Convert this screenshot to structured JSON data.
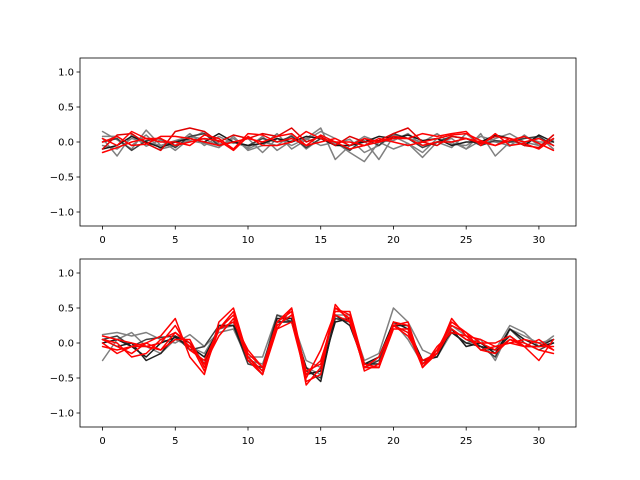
{
  "chart_data": [
    {
      "type": "line",
      "xlim": [
        -1.55,
        32.55
      ],
      "ylim": [
        -1.2,
        1.2
      ],
      "xticks": [
        0,
        5,
        10,
        15,
        20,
        25,
        30
      ],
      "yticks": [
        -1.0,
        -0.5,
        0.0,
        0.5,
        1.0
      ],
      "xtick_labels": [
        "0",
        "5",
        "10",
        "15",
        "20",
        "25",
        "30"
      ],
      "ytick_labels": [
        "−1.0",
        "−0.5",
        "0.0",
        "0.5",
        "1.0"
      ],
      "x": [
        0,
        1,
        2,
        3,
        4,
        5,
        6,
        7,
        8,
        9,
        10,
        11,
        12,
        13,
        14,
        15,
        16,
        17,
        18,
        19,
        20,
        21,
        22,
        23,
        24,
        25,
        26,
        27,
        28,
        29,
        30,
        31
      ],
      "series": [
        {
          "color": "#808080",
          "values": [
            0.15,
            0.03,
            -0.1,
            0.17,
            -0.05,
            0.02,
            0.08,
            0.04,
            -0.05,
            0.05,
            -0.1,
            0.0,
            -0.05,
            0.1,
            -0.1,
            0.05,
            -0.03,
            0.04,
            -0.15,
            -0.05,
            0.1,
            0.05,
            0.0,
            0.12,
            -0.03,
            -0.05,
            0.08,
            0.02,
            -0.06,
            0.1,
            -0.05,
            0.03
          ]
        },
        {
          "color": "#808080",
          "values": [
            0.05,
            -0.2,
            0.1,
            -0.06,
            0.03,
            -0.12,
            0.05,
            0.15,
            -0.03,
            0.0,
            -0.08,
            0.08,
            -0.12,
            0.02,
            0.05,
            0.2,
            -0.25,
            -0.05,
            0.08,
            0.0,
            -0.1,
            -0.02,
            -0.22,
            0.0,
            0.05,
            -0.1,
            0.12,
            -0.2,
            0.0,
            -0.02,
            0.08,
            -0.1
          ]
        },
        {
          "color": "#808080",
          "values": [
            -0.05,
            -0.1,
            0.05,
            0.0,
            -0.05,
            -0.05,
            0.12,
            -0.05,
            0.08,
            -0.02,
            0.05,
            -0.15,
            0.05,
            -0.05,
            0.05,
            -0.05,
            0.0,
            -0.15,
            -0.28,
            0.0,
            0.02,
            0.12,
            -0.05,
            0.0,
            -0.08,
            0.12,
            -0.05,
            0.05,
            0.12,
            0.0,
            -0.05,
            0.05
          ]
        },
        {
          "color": "#808080",
          "values": [
            0.08,
            0.08,
            -0.05,
            0.1,
            -0.1,
            -0.05,
            0.02,
            -0.02,
            -0.08,
            0.08,
            -0.12,
            -0.05,
            0.12,
            -0.1,
            0.03,
            0.15,
            0.05,
            -0.05,
            0.02,
            -0.25,
            0.08,
            -0.02,
            -0.15,
            0.05,
            0.0,
            -0.1,
            0.02,
            0.0,
            -0.05,
            0.08,
            0.0,
            0.0
          ]
        },
        {
          "color": "#404040",
          "values": [
            0.0,
            0.05,
            -0.12,
            0.02,
            0.05,
            -0.08,
            0.08,
            0.12,
            -0.05,
            0.0,
            -0.05,
            0.05,
            0.0,
            0.08,
            -0.08,
            0.05,
            0.0,
            -0.12,
            0.05,
            -0.05,
            0.12,
            0.05,
            -0.08,
            0.0,
            0.08,
            0.05,
            -0.05,
            0.02,
            0.0,
            0.05,
            0.08,
            -0.05
          ]
        },
        {
          "color": "#1a1a1a",
          "values": [
            -0.1,
            -0.05,
            0.08,
            0.0,
            -0.08,
            0.0,
            0.05,
            0.0,
            0.12,
            0.0,
            -0.05,
            -0.02,
            0.05,
            0.0,
            0.08,
            0.05,
            -0.05,
            -0.05,
            0.0,
            0.08,
            0.05,
            0.1,
            0.02,
            0.05,
            -0.05,
            0.0,
            0.0,
            0.1,
            0.05,
            -0.05,
            0.1,
            0.0
          ]
        },
        {
          "color": "#e00000",
          "values": [
            -0.1,
            0.1,
            0.12,
            -0.02,
            -0.12,
            0.15,
            0.2,
            0.15,
            0.0,
            0.1,
            0.05,
            0.12,
            0.08,
            0.2,
            0.0,
            0.08,
            -0.05,
            0.08,
            0.0,
            0.02,
            0.12,
            0.2,
            0.0,
            -0.05,
            0.08,
            0.05,
            -0.02,
            0.08,
            0.05,
            -0.05,
            -0.08,
            0.1
          ]
        },
        {
          "color": "#ff0000",
          "values": [
            0.05,
            -0.05,
            0.15,
            0.05,
            0.0,
            0.0,
            -0.05,
            0.1,
            0.05,
            -0.1,
            0.12,
            0.1,
            0.0,
            0.05,
            -0.05,
            0.1,
            0.0,
            0.0,
            -0.05,
            0.05,
            0.0,
            -0.05,
            0.0,
            0.05,
            0.1,
            0.12,
            0.02,
            -0.05,
            0.02,
            0.08,
            -0.02,
            -0.12
          ]
        },
        {
          "color": "#ff0000",
          "values": [
            -0.15,
            -0.08,
            0.0,
            0.05,
            0.05,
            -0.05,
            0.0,
            0.05,
            0.02,
            -0.12,
            0.08,
            -0.05,
            -0.05,
            0.0,
            0.15,
            0.05,
            0.0,
            -0.1,
            -0.05,
            0.0,
            0.05,
            0.05,
            0.12,
            0.08,
            0.12,
            0.15,
            -0.05,
            0.12,
            -0.05,
            -0.02,
            -0.1,
            0.05
          ]
        },
        {
          "color": "#ff0000",
          "values": [
            0.0,
            0.08,
            -0.05,
            -0.03,
            0.08,
            0.08,
            0.05,
            0.0,
            -0.05,
            0.0,
            0.05,
            0.0,
            0.08,
            0.12,
            -0.05,
            0.0,
            0.05,
            -0.05,
            0.05,
            0.0,
            0.08,
            0.05,
            -0.05,
            0.0,
            0.0,
            0.05,
            0.0,
            -0.05,
            0.05,
            0.0,
            0.05,
            -0.05
          ]
        }
      ]
    },
    {
      "type": "line",
      "xlim": [
        -1.55,
        32.55
      ],
      "ylim": [
        -1.2,
        1.2
      ],
      "xticks": [
        0,
        5,
        10,
        15,
        20,
        25,
        30
      ],
      "yticks": [
        -1.0,
        -0.5,
        0.0,
        0.5,
        1.0
      ],
      "xtick_labels": [
        "0",
        "5",
        "10",
        "15",
        "20",
        "25",
        "30"
      ],
      "ytick_labels": [
        "−1.0",
        "−0.5",
        "0.0",
        "0.5",
        "1.0"
      ],
      "x": [
        0,
        1,
        2,
        3,
        4,
        5,
        6,
        7,
        8,
        9,
        10,
        11,
        12,
        13,
        14,
        15,
        16,
        17,
        18,
        19,
        20,
        21,
        22,
        23,
        24,
        25,
        26,
        27,
        28,
        29,
        30,
        31
      ],
      "series": [
        {
          "color": "#808080",
          "values": [
            0.12,
            0.15,
            0.1,
            0.15,
            0.05,
            0.0,
            0.12,
            -0.05,
            0.15,
            0.2,
            -0.25,
            -0.3,
            0.3,
            0.32,
            -0.35,
            -0.45,
            0.35,
            0.35,
            -0.25,
            -0.15,
            0.5,
            0.3,
            -0.1,
            -0.2,
            0.15,
            0.0,
            0.05,
            -0.25,
            0.2,
            0.1,
            0.0,
            0.05
          ]
        },
        {
          "color": "#808080",
          "values": [
            -0.25,
            0.05,
            0.15,
            -0.05,
            -0.15,
            0.05,
            -0.05,
            -0.15,
            0.2,
            0.25,
            -0.2,
            -0.2,
            0.4,
            0.35,
            -0.25,
            -0.35,
            0.4,
            0.4,
            -0.3,
            -0.25,
            0.3,
            0.05,
            -0.3,
            -0.15,
            0.25,
            0.1,
            -0.05,
            -0.1,
            0.25,
            0.15,
            -0.05,
            0.1
          ]
        },
        {
          "color": "#404040",
          "values": [
            0.05,
            0.1,
            -0.05,
            0.05,
            0.08,
            0.1,
            -0.1,
            -0.05,
            0.25,
            0.25,
            -0.3,
            -0.35,
            0.4,
            0.3,
            -0.4,
            -0.5,
            0.35,
            0.3,
            -0.35,
            -0.25,
            0.25,
            0.15,
            -0.25,
            -0.15,
            0.2,
            0.05,
            -0.05,
            -0.2,
            0.2,
            0.0,
            -0.1,
            0.0
          ]
        },
        {
          "color": "#1a1a1a",
          "values": [
            0.0,
            0.05,
            -0.05,
            -0.2,
            0.0,
            0.08,
            -0.05,
            -0.2,
            0.2,
            0.3,
            -0.2,
            -0.4,
            0.35,
            0.35,
            -0.45,
            -0.4,
            0.3,
            0.35,
            -0.3,
            -0.2,
            0.3,
            0.2,
            -0.25,
            -0.2,
            0.2,
            -0.05,
            0.0,
            -0.15,
            0.2,
            0.05,
            -0.05,
            0.0
          ]
        },
        {
          "color": "#202020",
          "values": [
            0.05,
            -0.05,
            0.0,
            -0.25,
            -0.15,
            0.1,
            0.0,
            -0.3,
            0.25,
            0.25,
            -0.25,
            -0.45,
            0.3,
            0.3,
            -0.35,
            -0.55,
            0.4,
            0.25,
            -0.3,
            -0.3,
            0.25,
            0.25,
            -0.3,
            -0.1,
            0.15,
            0.0,
            -0.05,
            -0.1,
            0.1,
            -0.05,
            -0.05,
            0.05
          ]
        },
        {
          "color": "#ff0000",
          "values": [
            0.0,
            -0.15,
            -0.05,
            0.0,
            0.1,
            0.35,
            -0.2,
            -0.45,
            0.3,
            0.5,
            -0.2,
            -0.45,
            0.2,
            0.5,
            -0.55,
            -0.45,
            0.55,
            0.3,
            -0.35,
            -0.35,
            0.3,
            0.25,
            -0.35,
            -0.15,
            0.35,
            0.1,
            -0.1,
            -0.15,
            0.05,
            0.0,
            -0.1,
            -0.15
          ]
        },
        {
          "color": "#ff0000",
          "values": [
            0.05,
            0.0,
            -0.2,
            -0.15,
            0.05,
            0.15,
            0.0,
            -0.4,
            0.2,
            0.45,
            -0.2,
            -0.4,
            0.3,
            0.45,
            -0.6,
            -0.35,
            0.5,
            0.4,
            -0.4,
            -0.3,
            0.25,
            0.15,
            -0.35,
            -0.1,
            0.3,
            0.15,
            -0.1,
            -0.05,
            0.0,
            -0.05,
            -0.25,
            0.05
          ]
        },
        {
          "color": "#ff0000",
          "values": [
            -0.05,
            -0.1,
            -0.05,
            -0.05,
            -0.1,
            0.05,
            0.05,
            -0.35,
            0.2,
            0.3,
            -0.1,
            -0.35,
            0.2,
            0.3,
            -0.5,
            -0.1,
            0.45,
            0.45,
            -0.3,
            -0.35,
            0.25,
            0.3,
            -0.35,
            -0.05,
            0.15,
            0.1,
            0.05,
            -0.05,
            0.0,
            0.05,
            0.0,
            -0.1
          ]
        },
        {
          "color": "#ff0000",
          "values": [
            0.05,
            -0.05,
            -0.15,
            0.0,
            -0.1,
            0.15,
            -0.05,
            -0.3,
            0.1,
            0.35,
            -0.25,
            -0.45,
            0.25,
            0.4,
            -0.4,
            -0.3,
            0.5,
            0.35,
            -0.35,
            -0.2,
            0.25,
            0.1,
            -0.25,
            -0.15,
            0.2,
            0.05,
            0.0,
            -0.1,
            0.05,
            -0.05,
            -0.05,
            -0.05
          ]
        },
        {
          "color": "#ff0000",
          "values": [
            0.1,
            0.05,
            0.0,
            -0.05,
            0.0,
            0.25,
            -0.1,
            -0.25,
            0.2,
            0.4,
            -0.15,
            -0.35,
            0.3,
            0.5,
            -0.45,
            -0.25,
            0.4,
            0.3,
            -0.35,
            -0.35,
            0.2,
            0.2,
            -0.3,
            -0.1,
            0.25,
            0.15,
            0.0,
            0.0,
            0.1,
            -0.05,
            0.05,
            -0.1
          ]
        }
      ]
    }
  ]
}
